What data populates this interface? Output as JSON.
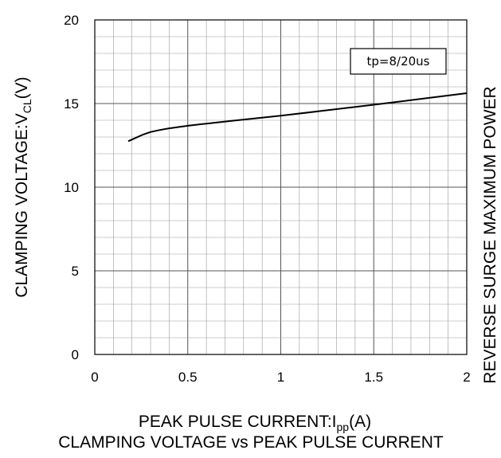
{
  "chart_data": {
    "type": "line",
    "title": "CLAMPING VOLTAGE vs PEAK PULSE CURRENT",
    "xlabel": {
      "main": "PEAK PULSE CURRENT:I",
      "sub": "pp",
      "unit": "(A)"
    },
    "ylabel": {
      "main": "CLAMPING VOLTAGE:V",
      "sub": "CL",
      "unit": "(V)"
    },
    "right_label": "REVERSE SURGE MAXIMUM POWER",
    "annotation": "tp=8/20us",
    "xlim": [
      0,
      2
    ],
    "ylim": [
      0,
      20
    ],
    "x_ticks": [
      "0",
      "0.5",
      "1",
      "1.5",
      "2"
    ],
    "y_ticks": [
      "0",
      "5",
      "10",
      "15",
      "20"
    ],
    "x_tick_values": [
      0,
      0.5,
      1,
      1.5,
      2
    ],
    "y_tick_values": [
      0,
      5,
      10,
      15,
      20
    ],
    "grid": true,
    "series": [
      {
        "x": [
          0.18,
          0.22,
          0.26,
          0.3,
          0.35,
          0.4,
          0.5,
          0.6,
          0.75,
          1.0,
          1.25,
          1.5,
          1.75,
          2.0
        ],
        "y": [
          12.75,
          12.95,
          13.15,
          13.3,
          13.42,
          13.52,
          13.67,
          13.8,
          13.98,
          14.27,
          14.6,
          14.93,
          15.27,
          15.62
        ]
      }
    ]
  }
}
